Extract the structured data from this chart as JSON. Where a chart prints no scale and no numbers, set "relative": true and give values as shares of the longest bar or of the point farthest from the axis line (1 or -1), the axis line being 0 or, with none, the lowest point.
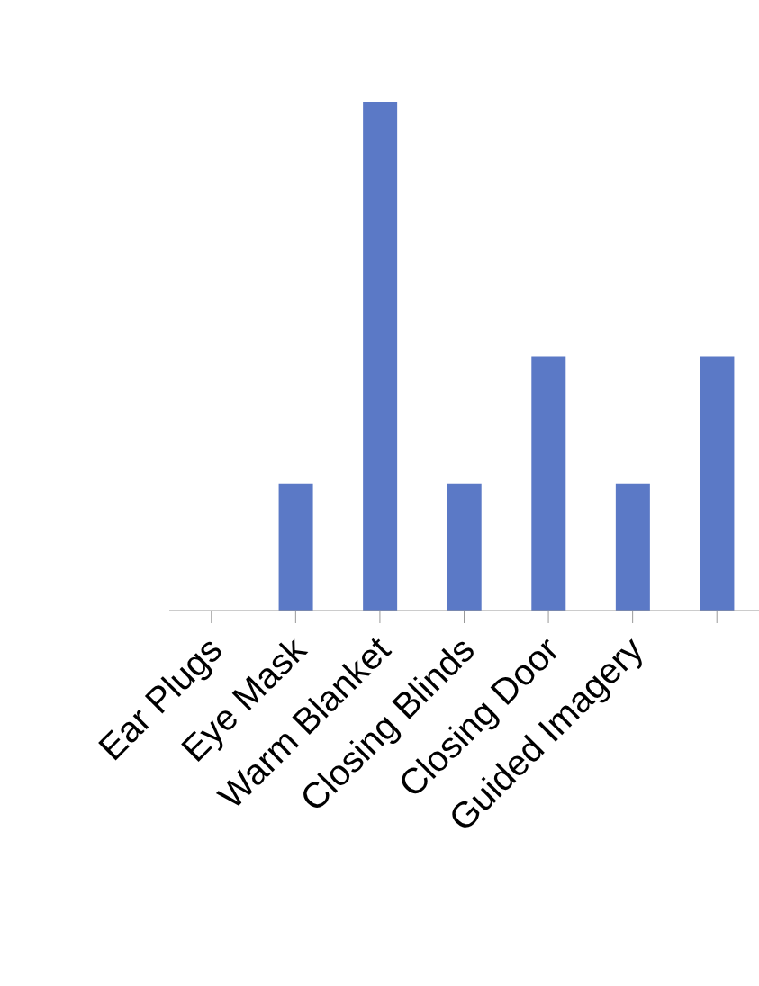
{
  "chart_data": {
    "type": "bar",
    "relative": true,
    "categories": [
      "Ear Plugs",
      "Eye Mask",
      "Warm Blanket",
      "Closing Blinds",
      "Closing Door",
      "Guided Imagery",
      null
    ],
    "values": [
      0,
      0.25,
      1,
      0.25,
      0.5,
      0.25,
      0.5
    ],
    "color": "#5b79c6",
    "grid": false,
    "legend": false
  }
}
